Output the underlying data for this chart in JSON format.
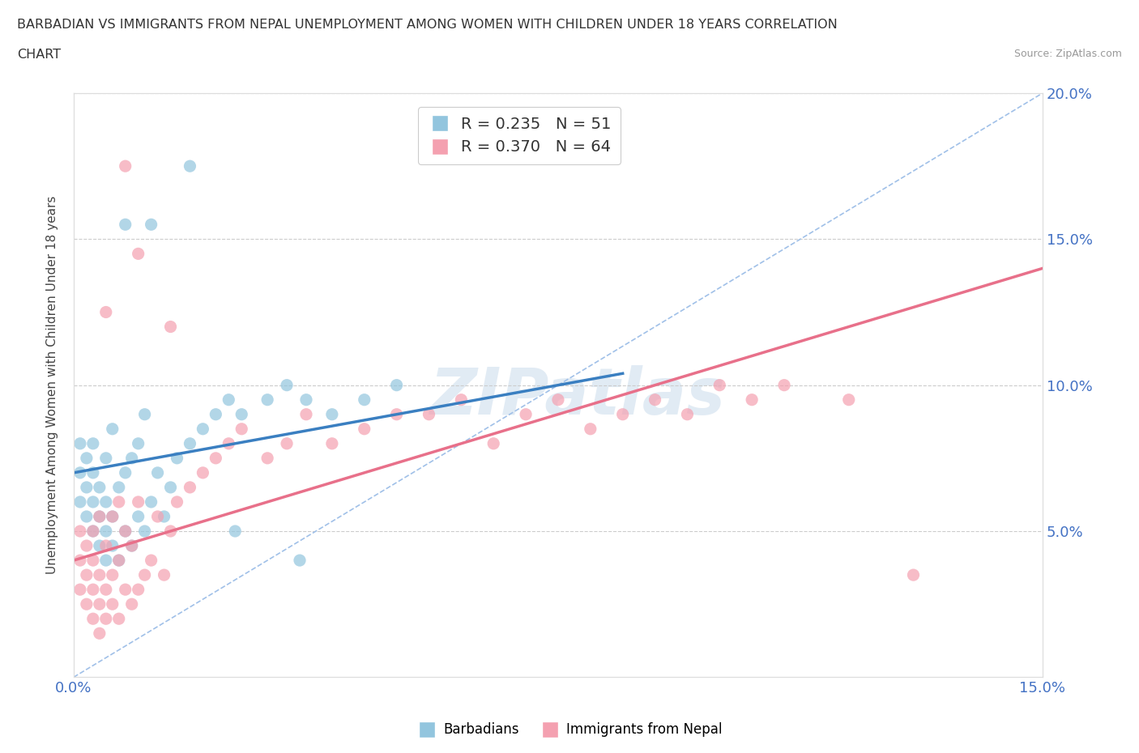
{
  "title_line1": "BARBADIAN VS IMMIGRANTS FROM NEPAL UNEMPLOYMENT AMONG WOMEN WITH CHILDREN UNDER 18 YEARS CORRELATION",
  "title_line2": "CHART",
  "source": "Source: ZipAtlas.com",
  "ylabel": "Unemployment Among Women with Children Under 18 years",
  "xmin": 0.0,
  "xmax": 0.15,
  "ymin": 0.0,
  "ymax": 0.2,
  "color_barbadian": "#92C5DE",
  "color_nepal": "#F4A0B0",
  "color_barbadian_line": "#3A7FC1",
  "color_nepal_line": "#E8708A",
  "color_diagonal": "#A0C0E8",
  "R_barbadian": 0.235,
  "N_barbadian": 51,
  "R_nepal": 0.37,
  "N_nepal": 64,
  "barbadian_x": [
    0.001,
    0.001,
    0.001,
    0.002,
    0.002,
    0.002,
    0.003,
    0.003,
    0.003,
    0.003,
    0.004,
    0.004,
    0.004,
    0.005,
    0.005,
    0.005,
    0.005,
    0.006,
    0.006,
    0.006,
    0.007,
    0.007,
    0.008,
    0.008,
    0.009,
    0.009,
    0.01,
    0.01,
    0.011,
    0.011,
    0.012,
    0.013,
    0.014,
    0.015,
    0.016,
    0.018,
    0.02,
    0.022,
    0.024,
    0.026,
    0.03,
    0.033,
    0.036,
    0.04,
    0.045,
    0.05,
    0.008,
    0.012,
    0.018,
    0.025,
    0.035
  ],
  "barbadian_y": [
    0.06,
    0.07,
    0.08,
    0.055,
    0.065,
    0.075,
    0.05,
    0.06,
    0.07,
    0.08,
    0.045,
    0.055,
    0.065,
    0.04,
    0.05,
    0.06,
    0.075,
    0.045,
    0.055,
    0.085,
    0.04,
    0.065,
    0.05,
    0.07,
    0.045,
    0.075,
    0.055,
    0.08,
    0.05,
    0.09,
    0.06,
    0.07,
    0.055,
    0.065,
    0.075,
    0.08,
    0.085,
    0.09,
    0.095,
    0.09,
    0.095,
    0.1,
    0.095,
    0.09,
    0.095,
    0.1,
    0.155,
    0.155,
    0.175,
    0.05,
    0.04
  ],
  "nepal_x": [
    0.001,
    0.001,
    0.001,
    0.002,
    0.002,
    0.002,
    0.003,
    0.003,
    0.003,
    0.003,
    0.004,
    0.004,
    0.004,
    0.004,
    0.005,
    0.005,
    0.005,
    0.006,
    0.006,
    0.006,
    0.007,
    0.007,
    0.007,
    0.008,
    0.008,
    0.009,
    0.009,
    0.01,
    0.01,
    0.011,
    0.012,
    0.013,
    0.014,
    0.015,
    0.016,
    0.018,
    0.02,
    0.022,
    0.024,
    0.026,
    0.03,
    0.033,
    0.036,
    0.04,
    0.045,
    0.05,
    0.055,
    0.06,
    0.065,
    0.07,
    0.075,
    0.08,
    0.085,
    0.09,
    0.095,
    0.1,
    0.105,
    0.11,
    0.12,
    0.13,
    0.005,
    0.008,
    0.01,
    0.015
  ],
  "nepal_y": [
    0.03,
    0.04,
    0.05,
    0.025,
    0.035,
    0.045,
    0.02,
    0.03,
    0.04,
    0.05,
    0.015,
    0.025,
    0.035,
    0.055,
    0.02,
    0.03,
    0.045,
    0.025,
    0.035,
    0.055,
    0.02,
    0.04,
    0.06,
    0.03,
    0.05,
    0.025,
    0.045,
    0.03,
    0.06,
    0.035,
    0.04,
    0.055,
    0.035,
    0.05,
    0.06,
    0.065,
    0.07,
    0.075,
    0.08,
    0.085,
    0.075,
    0.08,
    0.09,
    0.08,
    0.085,
    0.09,
    0.09,
    0.095,
    0.08,
    0.09,
    0.095,
    0.085,
    0.09,
    0.095,
    0.09,
    0.1,
    0.095,
    0.1,
    0.095,
    0.035,
    0.125,
    0.175,
    0.145,
    0.12
  ],
  "blue_trend_x": [
    0.0,
    0.085
  ],
  "blue_trend_y": [
    0.07,
    0.104
  ],
  "pink_trend_x": [
    0.0,
    0.15
  ],
  "pink_trend_y": [
    0.04,
    0.14
  ]
}
